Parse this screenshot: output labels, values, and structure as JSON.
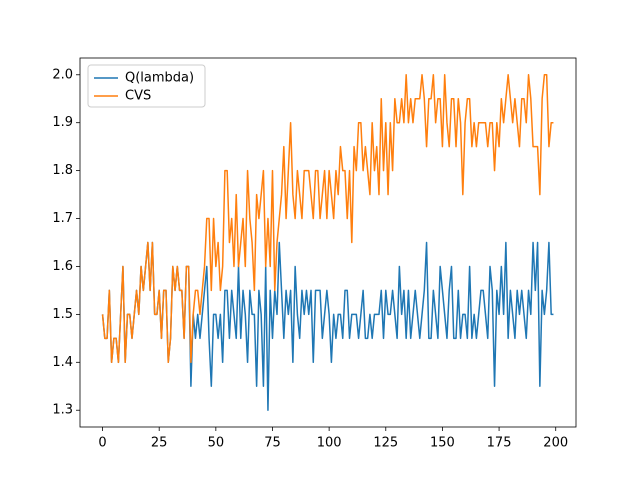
{
  "chart_data": {
    "type": "line",
    "x": [
      0,
      1,
      2,
      3,
      4,
      5,
      6,
      7,
      8,
      9,
      10,
      11,
      12,
      13,
      14,
      15,
      16,
      17,
      18,
      19,
      20,
      21,
      22,
      23,
      24,
      25,
      26,
      27,
      28,
      29,
      30,
      31,
      32,
      33,
      34,
      35,
      36,
      37,
      38,
      39,
      40,
      41,
      42,
      43,
      44,
      45,
      46,
      47,
      48,
      49,
      50,
      51,
      52,
      53,
      54,
      55,
      56,
      57,
      58,
      59,
      60,
      61,
      62,
      63,
      64,
      65,
      66,
      67,
      68,
      69,
      70,
      71,
      72,
      73,
      74,
      75,
      76,
      77,
      78,
      79,
      80,
      81,
      82,
      83,
      84,
      85,
      86,
      87,
      88,
      89,
      90,
      91,
      92,
      93,
      94,
      95,
      96,
      97,
      98,
      99,
      100,
      101,
      102,
      103,
      104,
      105,
      106,
      107,
      108,
      109,
      110,
      111,
      112,
      113,
      114,
      115,
      116,
      117,
      118,
      119,
      120,
      121,
      122,
      123,
      124,
      125,
      126,
      127,
      128,
      129,
      130,
      131,
      132,
      133,
      134,
      135,
      136,
      137,
      138,
      139,
      140,
      141,
      142,
      143,
      144,
      145,
      146,
      147,
      148,
      149,
      150,
      151,
      152,
      153,
      154,
      155,
      156,
      157,
      158,
      159,
      160,
      161,
      162,
      163,
      164,
      165,
      166,
      167,
      168,
      169,
      170,
      171,
      172,
      173,
      174,
      175,
      176,
      177,
      178,
      179,
      180,
      181,
      182,
      183,
      184,
      185,
      186,
      187,
      188,
      189,
      190,
      191,
      192,
      193,
      194,
      195,
      196,
      197,
      198,
      199
    ],
    "series": [
      {
        "name": "Q(lambda)",
        "color": "#1f77b4",
        "values": [
          1.5,
          1.45,
          1.45,
          1.55,
          1.4,
          1.45,
          1.45,
          1.4,
          1.5,
          1.6,
          1.4,
          1.5,
          1.5,
          1.45,
          1.5,
          1.55,
          1.5,
          1.6,
          1.55,
          1.6,
          1.65,
          1.55,
          1.65,
          1.5,
          1.5,
          1.55,
          1.45,
          1.55,
          1.55,
          1.4,
          1.45,
          1.6,
          1.55,
          1.6,
          1.55,
          1.55,
          1.45,
          1.6,
          1.6,
          1.35,
          1.5,
          1.45,
          1.5,
          1.45,
          1.5,
          1.55,
          1.6,
          1.45,
          1.35,
          1.5,
          1.5,
          1.45,
          1.5,
          1.4,
          1.55,
          1.55,
          1.45,
          1.55,
          1.5,
          1.45,
          1.6,
          1.45,
          1.55,
          1.5,
          1.4,
          1.55,
          1.5,
          1.5,
          1.35,
          1.55,
          1.5,
          1.35,
          1.6,
          1.3,
          1.55,
          1.45,
          1.55,
          1.5,
          1.65,
          1.55,
          1.45,
          1.55,
          1.5,
          1.55,
          1.4,
          1.6,
          1.5,
          1.45,
          1.55,
          1.5,
          1.55,
          1.5,
          1.55,
          1.4,
          1.55,
          1.55,
          1.55,
          1.45,
          1.5,
          1.55,
          1.5,
          1.4,
          1.5,
          1.45,
          1.5,
          1.5,
          1.45,
          1.55,
          1.55,
          1.45,
          1.5,
          1.5,
          1.5,
          1.45,
          1.5,
          1.55,
          1.45,
          1.45,
          1.5,
          1.45,
          1.5,
          1.5,
          1.5,
          1.55,
          1.45,
          1.55,
          1.5,
          1.5,
          1.55,
          1.5,
          1.45,
          1.6,
          1.5,
          1.55,
          1.45,
          1.55,
          1.45,
          1.5,
          1.55,
          1.5,
          1.45,
          1.5,
          1.55,
          1.65,
          1.45,
          1.45,
          1.55,
          1.5,
          1.45,
          1.6,
          1.55,
          1.5,
          1.45,
          1.55,
          1.6,
          1.45,
          1.45,
          1.55,
          1.45,
          1.5,
          1.5,
          1.45,
          1.6,
          1.45,
          1.5,
          1.45,
          1.5,
          1.55,
          1.55,
          1.5,
          1.45,
          1.6,
          1.55,
          1.35,
          1.55,
          1.5,
          1.6,
          1.5,
          1.65,
          1.45,
          1.55,
          1.5,
          1.45,
          1.55,
          1.5,
          1.55,
          1.5,
          1.45,
          1.55,
          1.5,
          1.65,
          1.55,
          1.65,
          1.35,
          1.55,
          1.5,
          1.55,
          1.65,
          1.5,
          1.5
        ]
      },
      {
        "name": "CVS",
        "color": "#ff7f0e",
        "values": [
          1.5,
          1.45,
          1.45,
          1.55,
          1.4,
          1.45,
          1.45,
          1.4,
          1.5,
          1.6,
          1.4,
          1.5,
          1.5,
          1.45,
          1.5,
          1.55,
          1.5,
          1.6,
          1.55,
          1.6,
          1.65,
          1.55,
          1.65,
          1.5,
          1.5,
          1.55,
          1.45,
          1.55,
          1.55,
          1.4,
          1.45,
          1.6,
          1.55,
          1.6,
          1.55,
          1.55,
          1.45,
          1.6,
          1.6,
          1.4,
          1.5,
          1.55,
          1.55,
          1.5,
          1.55,
          1.6,
          1.7,
          1.7,
          1.55,
          1.7,
          1.6,
          1.65,
          1.55,
          1.6,
          1.8,
          1.8,
          1.65,
          1.7,
          1.6,
          1.75,
          1.6,
          1.65,
          1.7,
          1.6,
          1.8,
          1.7,
          1.65,
          1.55,
          1.75,
          1.7,
          1.75,
          1.8,
          1.6,
          1.7,
          1.6,
          1.8,
          1.55,
          1.65,
          1.7,
          1.75,
          1.85,
          1.7,
          1.8,
          1.9,
          1.75,
          1.7,
          1.8,
          1.75,
          1.7,
          1.8,
          1.8,
          1.8,
          1.75,
          1.7,
          1.8,
          1.8,
          1.7,
          1.75,
          1.8,
          1.7,
          1.8,
          1.75,
          1.7,
          1.8,
          1.75,
          1.85,
          1.8,
          1.8,
          1.7,
          1.8,
          1.65,
          1.85,
          1.8,
          1.9,
          1.9,
          1.8,
          1.85,
          1.8,
          1.75,
          1.9,
          1.8,
          1.85,
          1.75,
          1.95,
          1.8,
          1.9,
          1.75,
          1.9,
          1.8,
          1.95,
          1.9,
          1.9,
          1.95,
          1.9,
          2.0,
          1.9,
          1.95,
          1.9,
          1.95,
          1.95,
          1.95,
          2.0,
          1.95,
          1.85,
          1.95,
          1.95,
          2.0,
          1.9,
          1.95,
          1.95,
          1.85,
          2.0,
          1.9,
          1.85,
          1.95,
          1.95,
          1.85,
          1.95,
          1.9,
          1.75,
          1.9,
          1.95,
          1.95,
          1.85,
          1.9,
          1.85,
          1.9,
          1.9,
          1.9,
          1.9,
          1.85,
          1.9,
          1.9,
          1.8,
          1.9,
          1.85,
          1.95,
          1.9,
          1.95,
          2.0,
          1.95,
          1.9,
          1.95,
          1.9,
          1.85,
          1.95,
          1.95,
          1.9,
          2.0,
          1.95,
          1.85,
          1.85,
          1.85,
          1.75,
          1.95,
          2.0,
          2.0,
          1.85,
          1.9,
          1.9
        ]
      }
    ],
    "xlim": [
      -9.95,
      208.95
    ],
    "xticks": [
      0,
      25,
      50,
      75,
      100,
      125,
      150,
      175,
      200
    ],
    "ylim": [
      1.265,
      2.035
    ],
    "yticks": [
      1.3,
      1.4,
      1.5,
      1.6,
      1.7,
      1.8,
      1.9,
      {
        "value": 2,
        "label": "2.0"
      }
    ],
    "grid": false,
    "legend": "upper-left"
  }
}
